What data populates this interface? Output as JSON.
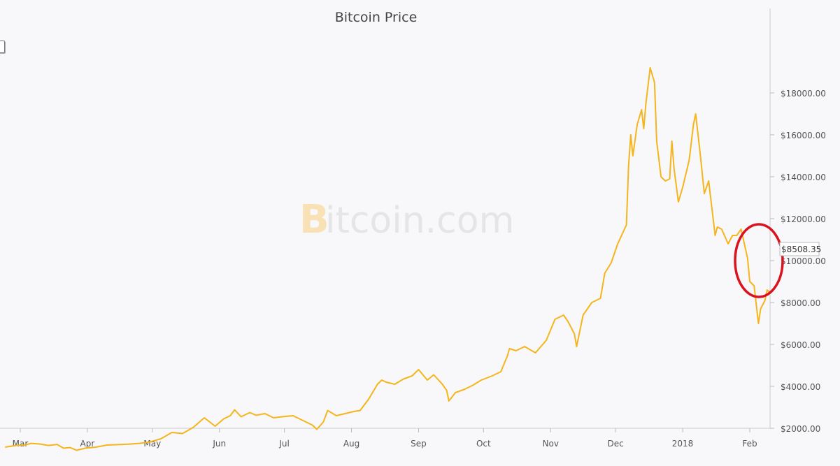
{
  "chart_data": {
    "type": "line",
    "title": "Bitcoin Price",
    "watermark": "Bitcoin.com",
    "xlabel": "",
    "ylabel": "",
    "x_ticks": [
      "Mar",
      "Apr",
      "May",
      "Jun",
      "Jul",
      "Aug",
      "Sep",
      "Oct",
      "Nov",
      "Dec",
      "2018",
      "Feb"
    ],
    "y_ticks": [
      "$2000.00",
      "$4000.00",
      "$6000.00",
      "$8000.00",
      "$10000.00",
      "$12000.00",
      "$14000.00",
      "$16000.00",
      "$18000.00"
    ],
    "ylim": [
      0,
      20000
    ],
    "grid": false,
    "last_value_label": "$8508.35",
    "line_color": "#f5b51d",
    "annotation_color": "#d9141f",
    "series": [
      {
        "x": [
          "2017-02-22",
          "2017-02-27",
          "2017-03-03",
          "2017-03-06",
          "2017-03-10",
          "2017-03-14",
          "2017-03-18",
          "2017-03-21",
          "2017-03-24",
          "2017-03-27",
          "2017-03-31",
          "2017-04-05",
          "2017-04-10",
          "2017-04-15",
          "2017-04-20",
          "2017-04-25",
          "2017-04-30",
          "2017-05-05",
          "2017-05-10",
          "2017-05-15",
          "2017-05-20",
          "2017-05-25",
          "2017-05-30",
          "2017-06-03",
          "2017-06-06",
          "2017-06-08",
          "2017-06-11",
          "2017-06-15",
          "2017-06-18",
          "2017-06-22",
          "2017-06-26",
          "2017-06-30",
          "2017-07-05",
          "2017-07-10",
          "2017-07-14",
          "2017-07-16",
          "2017-07-19",
          "2017-07-21",
          "2017-07-25",
          "2017-07-29",
          "2017-08-02",
          "2017-08-05",
          "2017-08-09",
          "2017-08-13",
          "2017-08-15",
          "2017-08-17",
          "2017-08-21",
          "2017-08-25",
          "2017-08-29",
          "2017-09-01",
          "2017-09-05",
          "2017-09-08",
          "2017-09-12",
          "2017-09-14",
          "2017-09-15",
          "2017-09-18",
          "2017-09-22",
          "2017-09-26",
          "2017-09-30",
          "2017-10-05",
          "2017-10-09",
          "2017-10-12",
          "2017-10-13",
          "2017-10-16",
          "2017-10-20",
          "2017-10-25",
          "2017-10-30",
          "2017-11-03",
          "2017-11-07",
          "2017-11-09",
          "2017-11-12",
          "2017-11-13",
          "2017-11-16",
          "2017-11-20",
          "2017-11-24",
          "2017-11-26",
          "2017-11-29",
          "2017-12-02",
          "2017-12-06",
          "2017-12-07",
          "2017-12-08",
          "2017-12-09",
          "2017-12-11",
          "2017-12-13",
          "2017-12-14",
          "2017-12-15",
          "2017-12-17",
          "2017-12-19",
          "2017-12-20",
          "2017-12-22",
          "2017-12-24",
          "2017-12-26",
          "2017-12-27",
          "2017-12-28",
          "2017-12-30",
          "2018-01-01",
          "2018-01-04",
          "2018-01-06",
          "2018-01-07",
          "2018-01-09",
          "2018-01-11",
          "2018-01-13",
          "2018-01-16",
          "2018-01-17",
          "2018-01-19",
          "2018-01-22",
          "2018-01-24",
          "2018-01-26",
          "2018-01-28",
          "2018-01-31",
          "2018-02-01",
          "2018-02-03",
          "2018-02-05",
          "2018-02-06",
          "2018-02-08",
          "2018-02-09",
          "2018-02-10"
        ],
        "y": [
          1100,
          1180,
          1200,
          1280,
          1250,
          1180,
          1230,
          1050,
          1080,
          950,
          1050,
          1100,
          1200,
          1220,
          1240,
          1280,
          1350,
          1500,
          1800,
          1750,
          2050,
          2500,
          2100,
          2450,
          2600,
          2880,
          2550,
          2750,
          2620,
          2700,
          2500,
          2550,
          2600,
          2350,
          2150,
          1950,
          2300,
          2850,
          2600,
          2700,
          2800,
          2850,
          3400,
          4100,
          4300,
          4200,
          4100,
          4350,
          4500,
          4800,
          4300,
          4550,
          4100,
          3800,
          3300,
          3700,
          3850,
          4050,
          4300,
          4500,
          4700,
          5450,
          5800,
          5700,
          5900,
          5600,
          6200,
          7200,
          7400,
          7100,
          6500,
          5900,
          7400,
          8000,
          8200,
          9400,
          9900,
          10800,
          11700,
          14500,
          16000,
          15000,
          16500,
          17200,
          16300,
          17500,
          19200,
          18500,
          15700,
          14000,
          13800,
          13900,
          15700,
          14400,
          12800,
          13500,
          14800,
          16500,
          17000,
          15200,
          13200,
          13800,
          11200,
          11600,
          11500,
          10800,
          11200,
          11200,
          11500,
          10100,
          9000,
          8800,
          7000,
          7700,
          8100,
          8600,
          8508
        ]
      }
    ]
  }
}
